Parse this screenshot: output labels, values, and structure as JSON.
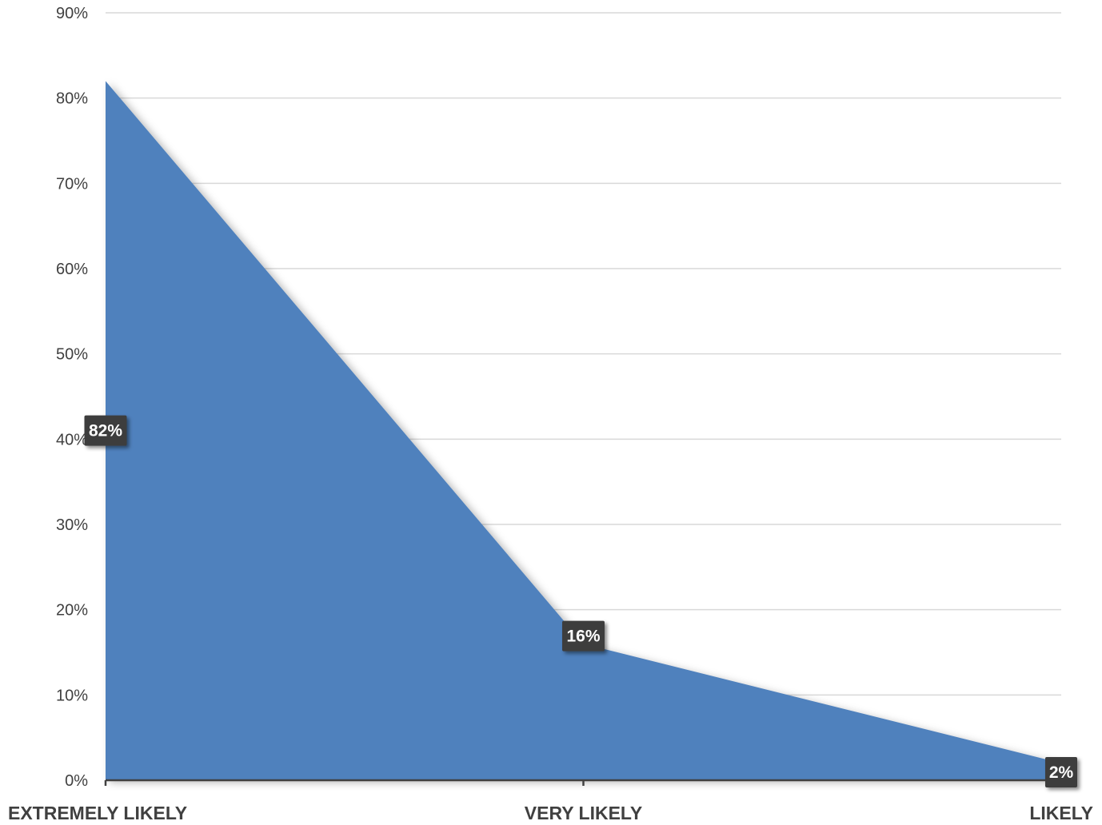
{
  "chart_data": {
    "type": "area",
    "categories": [
      "EXTREMELY LIKELY",
      "VERY LIKELY",
      "LIKELY"
    ],
    "series": [
      {
        "values": [
          82,
          16,
          2
        ]
      }
    ],
    "data_labels": [
      "82%",
      "16%",
      "2%"
    ],
    "y_ticks": [
      "0%",
      "10%",
      "20%",
      "30%",
      "40%",
      "50%",
      "60%",
      "70%",
      "80%",
      "90%"
    ],
    "ylim": [
      0,
      90
    ],
    "y_unit": "%",
    "grid": true,
    "legend": "none",
    "title": "",
    "xlabel": "",
    "ylabel": "",
    "colors": {
      "area": "#4f81bd",
      "grid": "#d9d9d9",
      "axis": "#404040",
      "label_bg": "#3c3c3c"
    }
  }
}
